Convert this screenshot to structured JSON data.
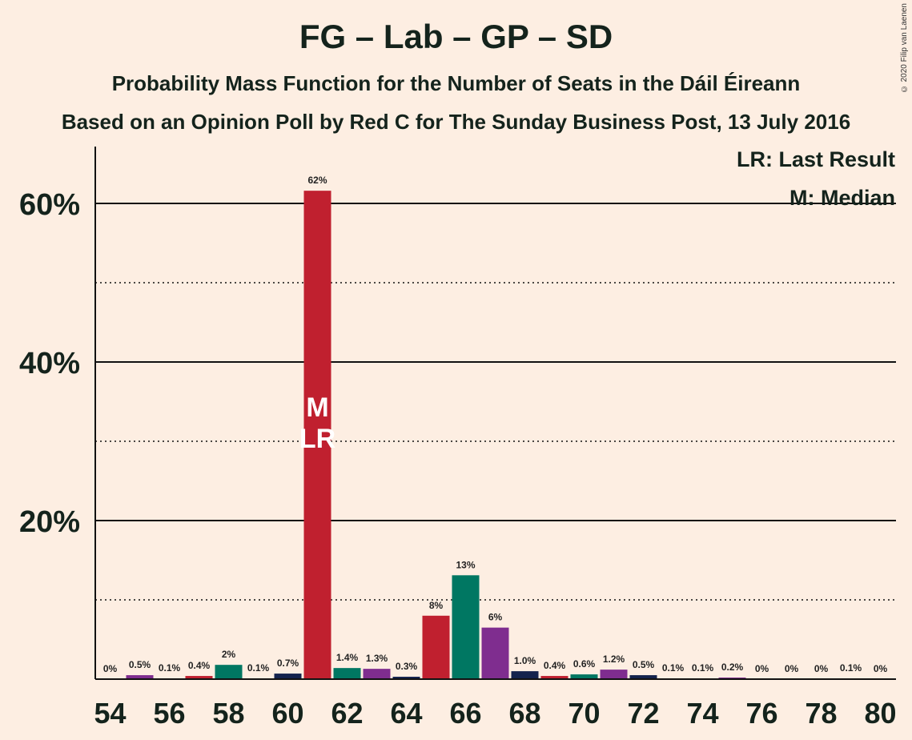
{
  "title": "FG – Lab – GP – SD",
  "subtitle": "Probability Mass Function for the Number of Seats in the Dáil Éireann",
  "subtitle2": "Based on an Opinion Poll by Red C for The Sunday Business Post, 13 July 2016",
  "copyright": "© 2020 Filip van Laenen",
  "legend": {
    "lr": "LR: Last Result",
    "m": "M: Median"
  },
  "markers": {
    "median_label": "M",
    "last_result_label": "LR",
    "median_seat": 61,
    "last_result_seat": 61
  },
  "colors": {
    "background": "#fdeee2",
    "red": "#c0202f",
    "green": "#007762",
    "purple": "#7f2d8f",
    "navy": "#14234d"
  },
  "chart_data": {
    "type": "bar",
    "xlabel": "",
    "ylabel": "",
    "ylim": [
      0,
      67
    ],
    "y_ticks": [
      {
        "value": 20,
        "label": "20%"
      },
      {
        "value": 40,
        "label": "40%"
      },
      {
        "value": 60,
        "label": "60%"
      }
    ],
    "y_minor_gridlines": [
      10,
      30,
      50
    ],
    "x_tick_labels": [
      "54",
      "56",
      "58",
      "60",
      "62",
      "64",
      "66",
      "68",
      "70",
      "72",
      "74",
      "76",
      "78",
      "80"
    ],
    "bars": [
      {
        "seats": 54,
        "value": 0,
        "label": "0%",
        "color": "navy"
      },
      {
        "seats": 55,
        "value": 0.5,
        "label": "0.5%",
        "color": "purple"
      },
      {
        "seats": 56,
        "value": 0.1,
        "label": "0.1%",
        "color": "navy"
      },
      {
        "seats": 57,
        "value": 0.4,
        "label": "0.4%",
        "color": "red"
      },
      {
        "seats": 58,
        "value": 1.8,
        "label": "2%",
        "color": "green"
      },
      {
        "seats": 59,
        "value": 0.1,
        "label": "0.1%",
        "color": "purple"
      },
      {
        "seats": 60,
        "value": 0.7,
        "label": "0.7%",
        "color": "navy"
      },
      {
        "seats": 61,
        "value": 61.6,
        "label": "62%",
        "color": "red"
      },
      {
        "seats": 62,
        "value": 1.4,
        "label": "1.4%",
        "color": "green"
      },
      {
        "seats": 63,
        "value": 1.3,
        "label": "1.3%",
        "color": "purple"
      },
      {
        "seats": 64,
        "value": 0.3,
        "label": "0.3%",
        "color": "navy"
      },
      {
        "seats": 65,
        "value": 8,
        "label": "8%",
        "color": "red"
      },
      {
        "seats": 66,
        "value": 13.1,
        "label": "13%",
        "color": "green"
      },
      {
        "seats": 67,
        "value": 6.5,
        "label": "6%",
        "color": "purple"
      },
      {
        "seats": 68,
        "value": 1.0,
        "label": "1.0%",
        "color": "navy"
      },
      {
        "seats": 69,
        "value": 0.4,
        "label": "0.4%",
        "color": "red"
      },
      {
        "seats": 70,
        "value": 0.6,
        "label": "0.6%",
        "color": "green"
      },
      {
        "seats": 71,
        "value": 1.2,
        "label": "1.2%",
        "color": "purple"
      },
      {
        "seats": 72,
        "value": 0.5,
        "label": "0.5%",
        "color": "navy"
      },
      {
        "seats": 73,
        "value": 0.1,
        "label": "0.1%",
        "color": "red"
      },
      {
        "seats": 74,
        "value": 0.1,
        "label": "0.1%",
        "color": "green"
      },
      {
        "seats": 75,
        "value": 0.2,
        "label": "0.2%",
        "color": "purple"
      },
      {
        "seats": 76,
        "value": 0,
        "label": "0%",
        "color": "navy"
      },
      {
        "seats": 77,
        "value": 0,
        "label": "0%",
        "color": "red"
      },
      {
        "seats": 78,
        "value": 0,
        "label": "0%",
        "color": "green"
      },
      {
        "seats": 79,
        "value": 0.1,
        "label": "0.1%",
        "color": "purple"
      },
      {
        "seats": 80,
        "value": 0,
        "label": "0%",
        "color": "navy"
      }
    ]
  }
}
